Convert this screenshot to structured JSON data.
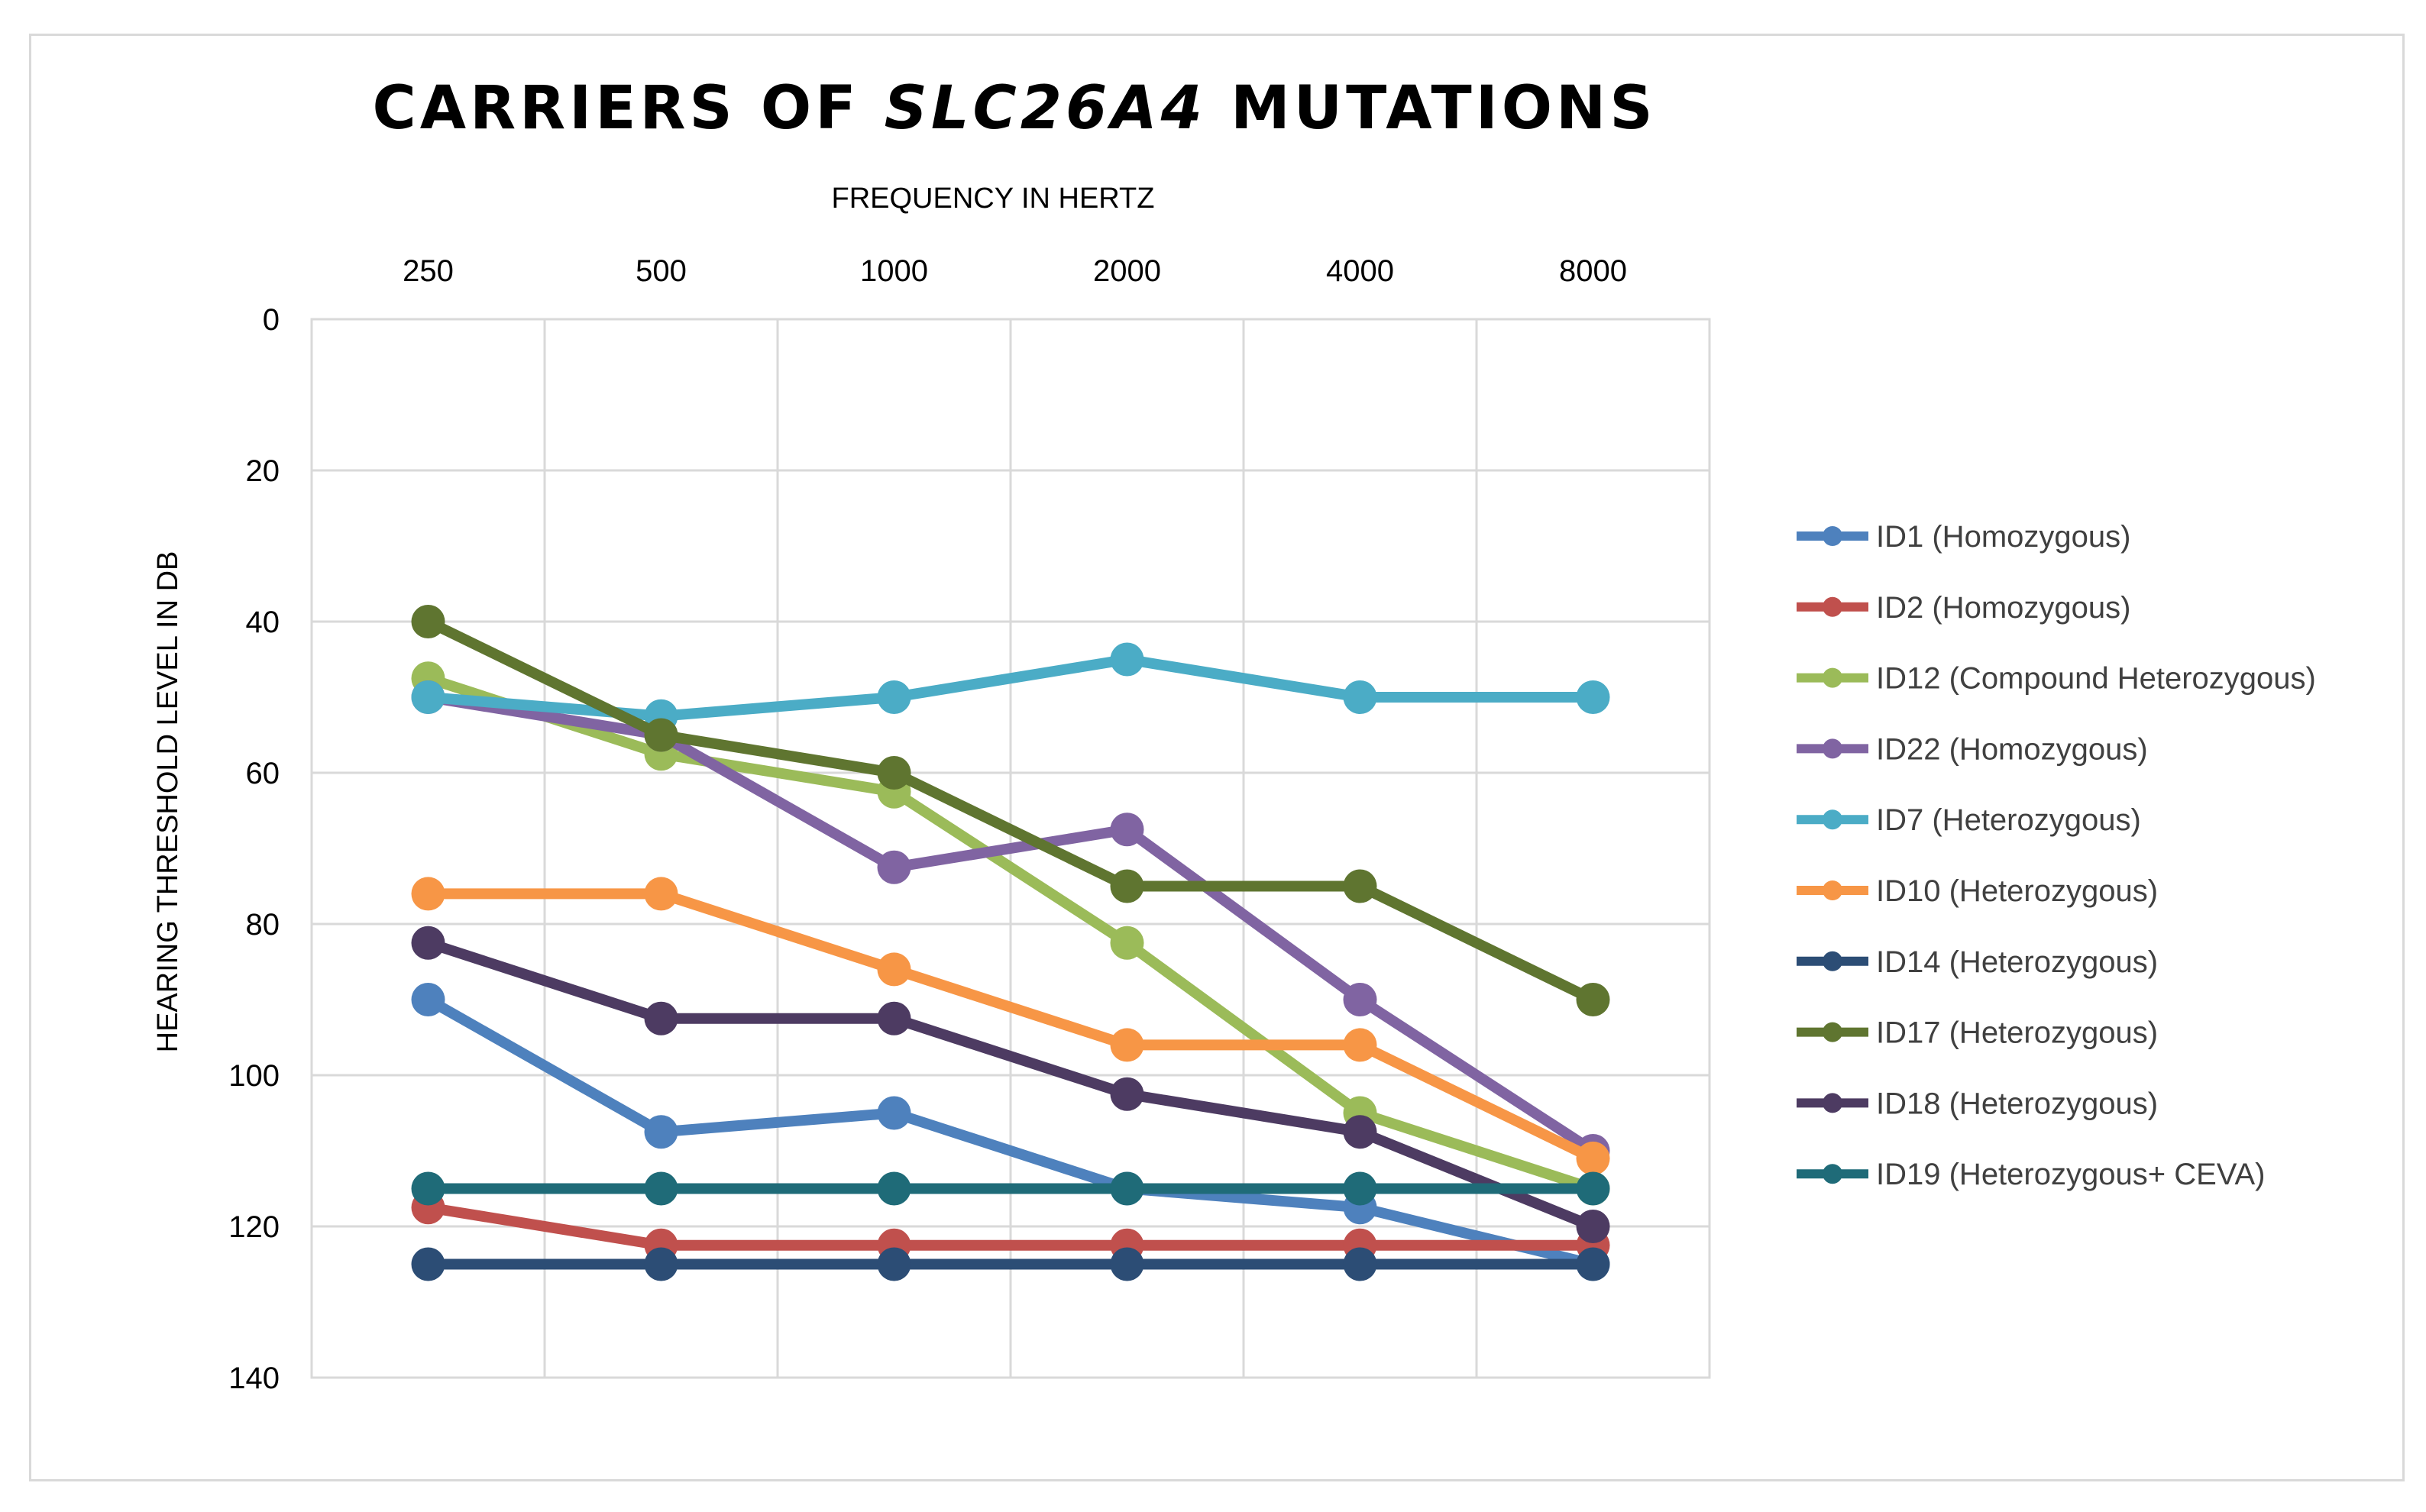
{
  "chart_data": {
    "type": "line",
    "title_parts": [
      "CARRIERS OF ",
      "SLC26A4",
      " MUTATIONS"
    ],
    "xlabel": "FREQUENCY IN HERTZ",
    "ylabel": "HEARING THRESHOLD LEVEL IN DB",
    "x_axis_position": "top",
    "y_reversed": true,
    "categories": [
      "250",
      "500",
      "1000",
      "2000",
      "4000",
      "8000"
    ],
    "ylim": [
      0,
      140
    ],
    "yticks": [
      0,
      20,
      40,
      60,
      80,
      100,
      120,
      140
    ],
    "grid": true,
    "legend_position": "right",
    "series": [
      {
        "name": "ID1 (Homozygous)",
        "color": "#4E81BD",
        "values": [
          90,
          107.5,
          105,
          115,
          117.5,
          125
        ]
      },
      {
        "name": "ID2 (Homozygous)",
        "color": "#C0504D",
        "values": [
          117.5,
          122.5,
          122.5,
          122.5,
          122.5,
          122.5
        ]
      },
      {
        "name": "ID12 (Compound Heterozygous)",
        "color": "#9BBB59",
        "values": [
          47.5,
          57.5,
          62.5,
          82.5,
          105,
          115
        ]
      },
      {
        "name": "ID22 (Homozygous)",
        "color": "#8064A2",
        "values": [
          50,
          55,
          72.5,
          67.5,
          90,
          110
        ]
      },
      {
        "name": "ID7 (Heterozygous)",
        "color": "#4BACC6",
        "values": [
          50,
          52.5,
          50,
          45,
          50,
          50
        ]
      },
      {
        "name": "ID10 (Heterozygous)",
        "color": "#F79646",
        "values": [
          76,
          76,
          86,
          96,
          96,
          111
        ]
      },
      {
        "name": "ID14 (Heterozygous)",
        "color": "#2C4D75",
        "values": [
          125,
          125,
          125,
          125,
          125,
          125
        ]
      },
      {
        "name": "ID17 (Heterozygous)",
        "color": "#5F7530",
        "values": [
          40,
          55,
          60,
          75,
          75,
          90
        ]
      },
      {
        "name": "ID18 (Heterozygous)",
        "color": "#4D3B62",
        "values": [
          82.5,
          92.5,
          92.5,
          102.5,
          107.5,
          120
        ]
      },
      {
        "name": "ID19 (Heterozygous+ CEVA)",
        "color": "#1F6B78",
        "values": [
          115,
          115,
          115,
          115,
          115,
          115
        ]
      }
    ]
  }
}
